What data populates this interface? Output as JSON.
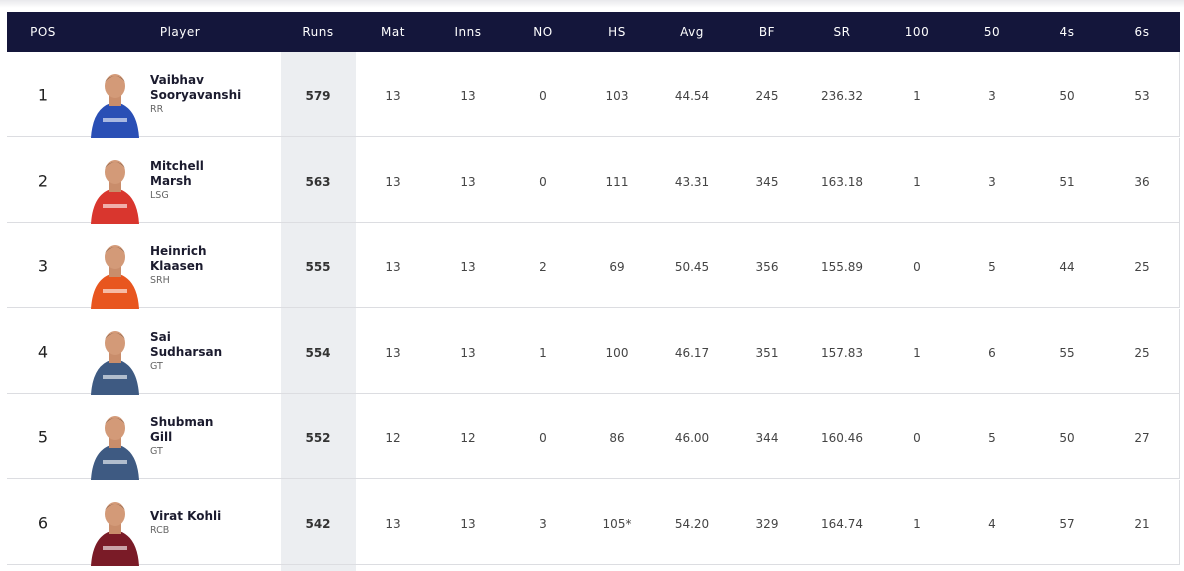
{
  "table": {
    "headers": [
      "POS",
      "Player",
      "Runs",
      "Mat",
      "Inns",
      "NO",
      "HS",
      "Avg",
      "BF",
      "SR",
      "100",
      "50",
      "4s",
      "6s"
    ],
    "rows": [
      {
        "pos": "1",
        "name": [
          "Vaibhav",
          "Sooryavanshi"
        ],
        "team": "RR",
        "stats": [
          "579",
          "13",
          "13",
          "0",
          "103",
          "44.54",
          "245",
          "236.32",
          "1",
          "3",
          "50",
          "53"
        ]
      },
      {
        "pos": "2",
        "name": [
          "Mitchell",
          "Marsh"
        ],
        "team": "LSG",
        "stats": [
          "563",
          "13",
          "13",
          "0",
          "111",
          "43.31",
          "345",
          "163.18",
          "1",
          "3",
          "51",
          "36"
        ]
      },
      {
        "pos": "3",
        "name": [
          "Heinrich",
          "Klaasen"
        ],
        "team": "SRH",
        "stats": [
          "555",
          "13",
          "13",
          "2",
          "69",
          "50.45",
          "356",
          "155.89",
          "0",
          "5",
          "44",
          "25"
        ]
      },
      {
        "pos": "4",
        "name": [
          "Sai",
          "Sudharsan"
        ],
        "team": "GT",
        "stats": [
          "554",
          "13",
          "13",
          "1",
          "100",
          "46.17",
          "351",
          "157.83",
          "1",
          "6",
          "55",
          "25"
        ]
      },
      {
        "pos": "5",
        "name": [
          "Shubman",
          "Gill"
        ],
        "team": "GT",
        "stats": [
          "552",
          "12",
          "12",
          "0",
          "86",
          "46.00",
          "344",
          "160.46",
          "0",
          "5",
          "50",
          "27"
        ]
      },
      {
        "pos": "6",
        "name": [
          "Virat Kohli"
        ],
        "team": "RCB",
        "stats": [
          "542",
          "13",
          "13",
          "3",
          "105*",
          "54.20",
          "329",
          "164.74",
          "1",
          "4",
          "57",
          "21"
        ]
      }
    ]
  }
}
